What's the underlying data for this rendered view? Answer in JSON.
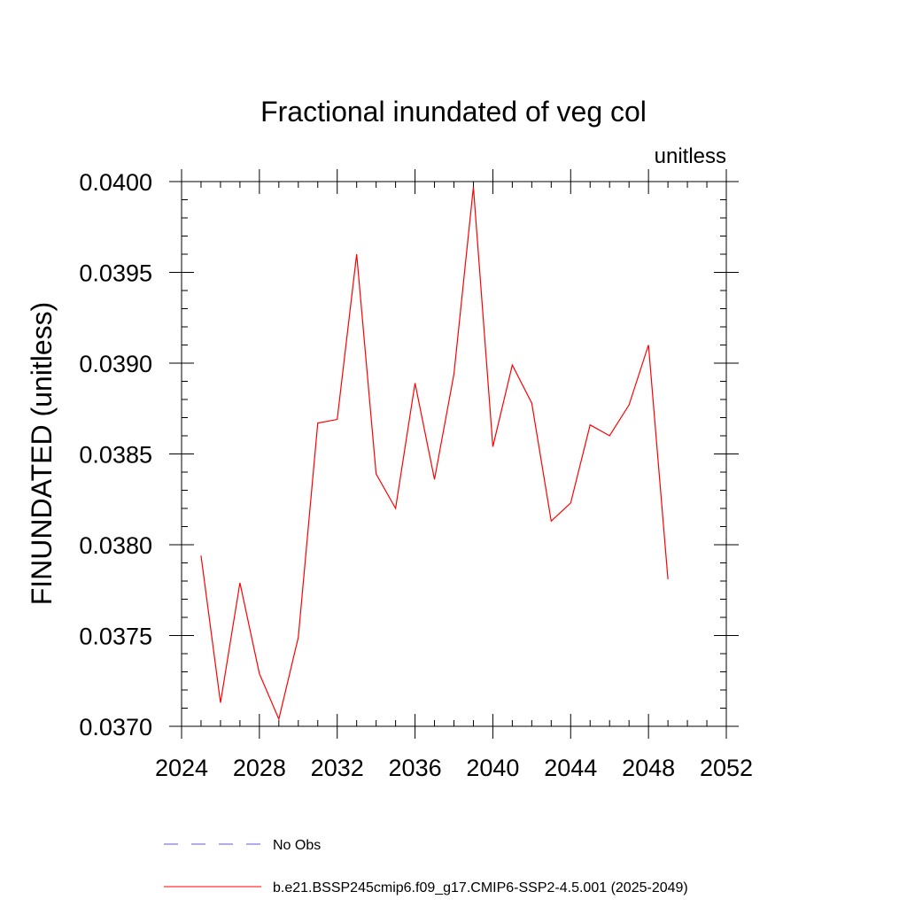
{
  "chart_data": {
    "type": "line",
    "title": "Fractional inundated of veg col",
    "units_label": "unitless",
    "ylabel": "FINUNDATED  (unitless)",
    "xlabel": "",
    "xlim": [
      2024,
      2052
    ],
    "ylim": [
      0.037,
      0.04
    ],
    "xticks": [
      2024,
      2028,
      2032,
      2036,
      2040,
      2044,
      2048,
      2052
    ],
    "xtick_labels": [
      "2024",
      "2028",
      "2032",
      "2036",
      "2040",
      "2044",
      "2048",
      "2052"
    ],
    "yticks": [
      0.037,
      0.0375,
      0.038,
      0.0385,
      0.039,
      0.0395,
      0.04
    ],
    "ytick_labels": [
      "0.0370",
      "0.0375",
      "0.0380",
      "0.0385",
      "0.0390",
      "0.0395",
      "0.0400"
    ],
    "x_minor_step": 1,
    "y_minor_step": 0.0001,
    "grid": false,
    "legend_position": "bottom",
    "legend": [
      {
        "label": "No Obs",
        "color": "#6a5acd",
        "dash": "dashed"
      },
      {
        "label": "b.e21.BSSP245cmip6.f09_g17.CMIP6-SSP2-4.5.001 (2025-2049)",
        "color": "#ff0000",
        "dash": "solid"
      }
    ],
    "series": [
      {
        "name": "b.e21.BSSP245cmip6.f09_g17.CMIP6-SSP2-4.5.001 (2025-2049)",
        "color": "#ff0000",
        "x": [
          2025,
          2026,
          2027,
          2028,
          2029,
          2030,
          2031,
          2032,
          2033,
          2034,
          2035,
          2036,
          2037,
          2038,
          2039,
          2040,
          2041,
          2042,
          2043,
          2044,
          2045,
          2046,
          2047,
          2048,
          2049
        ],
        "values": [
          0.03794,
          0.03713,
          0.03779,
          0.03729,
          0.03704,
          0.03749,
          0.03867,
          0.03869,
          0.0396,
          0.03839,
          0.0382,
          0.03889,
          0.03836,
          0.03894,
          0.03997,
          0.03854,
          0.03899,
          0.03878,
          0.03813,
          0.03823,
          0.03866,
          0.0386,
          0.03877,
          0.0391,
          0.03781
        ]
      }
    ]
  }
}
